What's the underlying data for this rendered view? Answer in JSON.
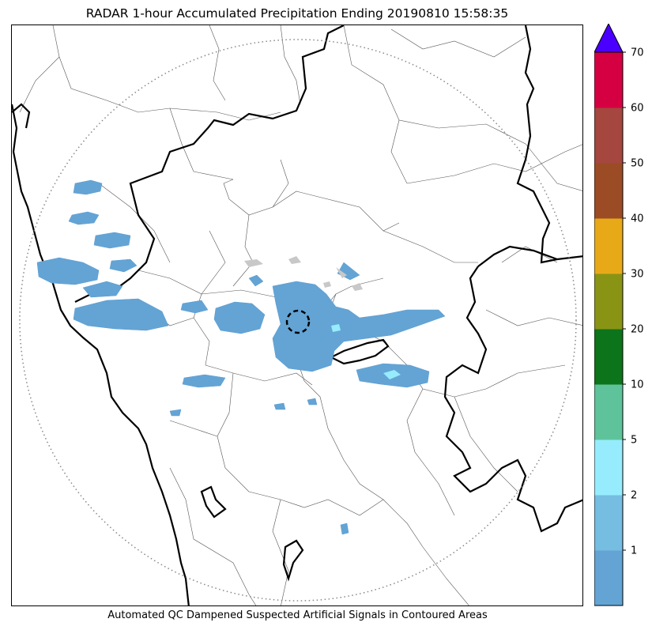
{
  "title": "RADAR 1-hour Accumulated Precipitation Ending 20190810 15:58:35",
  "caption": "Automated QC Dampened Suspected Artificial Signals in Contoured Areas",
  "colorbar": {
    "extend": "max",
    "extend_color": "#4a00ff",
    "bins": [
      {
        "from": 0,
        "to": 1,
        "color": "#63a4d5"
      },
      {
        "from": 1,
        "to": 2,
        "color": "#76bde2"
      },
      {
        "from": 2,
        "to": 5,
        "color": "#96ecfd"
      },
      {
        "from": 5,
        "to": 10,
        "color": "#5ec39a"
      },
      {
        "from": 10,
        "to": 20,
        "color": "#0c741a"
      },
      {
        "from": 20,
        "to": 30,
        "color": "#899415"
      },
      {
        "from": 30,
        "to": 40,
        "color": "#e8a918"
      },
      {
        "from": 40,
        "to": 50,
        "color": "#9c4c25"
      },
      {
        "from": 50,
        "to": 60,
        "color": "#a5473f"
      },
      {
        "from": 60,
        "to": 70,
        "color": "#d50042"
      }
    ],
    "tick_labels": [
      "1",
      "2",
      "5",
      "10",
      "20",
      "30",
      "40",
      "50",
      "60",
      "70"
    ]
  },
  "map": {
    "range_ring_style": "dotted",
    "radar_site_marker": "dashed-circle",
    "border_color": "#000000",
    "district_line_color": "#555555",
    "qc_echo_color": "#c8c8c8"
  }
}
